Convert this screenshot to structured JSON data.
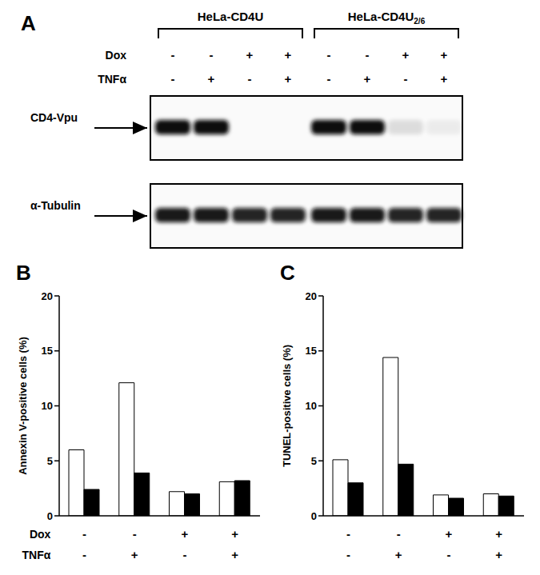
{
  "blot": {
    "panel": "A",
    "groups": [
      {
        "label": "HeLa-CD4U",
        "subscript": ""
      },
      {
        "label": "HeLa-CD4U",
        "subscript": "2/6"
      }
    ],
    "condition_rows": [
      {
        "label": "Dox",
        "values": [
          "-",
          "-",
          "+",
          "+",
          "-",
          "-",
          "+",
          "+"
        ]
      },
      {
        "label": "TNFα",
        "values": [
          "-",
          "+",
          "-",
          "+",
          "-",
          "+",
          "-",
          "+"
        ]
      }
    ],
    "bands": [
      {
        "label": "CD4-Vpu",
        "intensity": [
          1,
          1,
          0,
          0,
          1,
          1,
          0.12,
          0.06
        ]
      },
      {
        "label": "α-Tubulin",
        "intensity": [
          0.95,
          0.95,
          0.9,
          0.9,
          0.95,
          0.95,
          0.9,
          0.9
        ]
      }
    ]
  },
  "chart_data": [
    {
      "type": "bar",
      "panel": "B",
      "y_label": "Annexin V-positive cells (%)",
      "categories": [
        null,
        null,
        null,
        null
      ],
      "condition_rows": [
        {
          "label": "Dox",
          "values": [
            "-",
            "-",
            "+",
            "+"
          ]
        },
        {
          "label": "TNFα",
          "values": [
            "-",
            "+",
            "-",
            "+"
          ]
        }
      ],
      "series": [
        {
          "color": "#ffffff",
          "values": [
            6.0,
            12.1,
            2.2,
            3.1
          ]
        },
        {
          "color": "#000000",
          "values": [
            2.4,
            3.9,
            2.0,
            3.2
          ]
        }
      ],
      "ylim": [
        0,
        20
      ],
      "yticks": [
        0,
        5,
        10,
        15,
        20
      ],
      "grid": false
    },
    {
      "type": "bar",
      "panel": "C",
      "y_label": "TUNEL-positive cells (%)",
      "categories": [
        null,
        null,
        null,
        null
      ],
      "condition_rows": [
        {
          "values": [
            "-",
            "-",
            "+",
            "+"
          ]
        },
        {
          "values": [
            "-",
            "+",
            "-",
            "+"
          ]
        }
      ],
      "series": [
        {
          "color": "#ffffff",
          "values": [
            5.1,
            14.4,
            1.9,
            2.0
          ]
        },
        {
          "color": "#000000",
          "values": [
            3.0,
            4.7,
            1.6,
            1.8
          ]
        }
      ],
      "ylim": [
        0,
        20
      ],
      "yticks": [
        0,
        5,
        10,
        15,
        20
      ],
      "grid": false
    }
  ]
}
